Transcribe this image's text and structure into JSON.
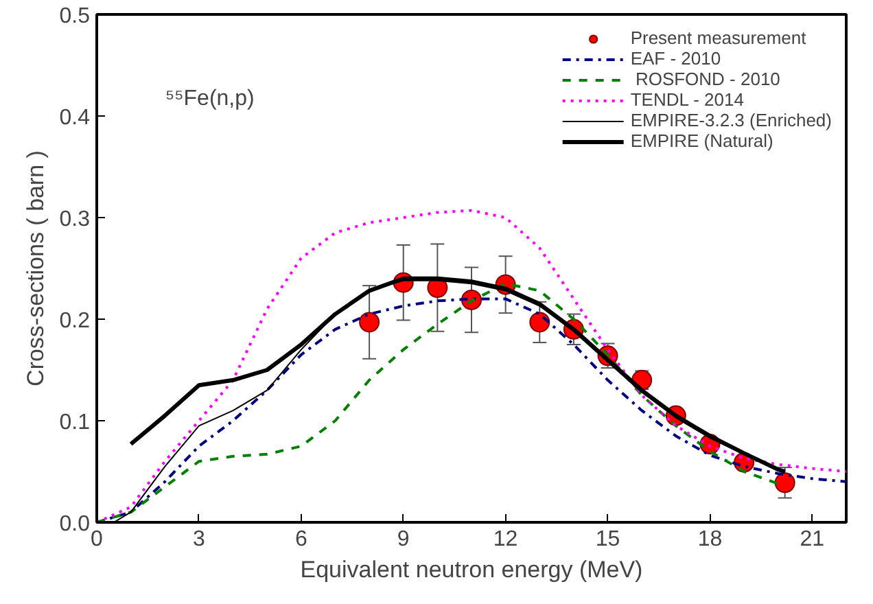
{
  "chart_data": {
    "type": "line",
    "xlabel": "Equivalent neutron energy (MeV)",
    "ylabel": "Cross-sections ( barn )",
    "xlim": [
      0,
      22
    ],
    "ylim": [
      0,
      0.5
    ],
    "xticks": [
      0,
      3,
      6,
      9,
      12,
      15,
      18,
      21
    ],
    "yticks": [
      {
        "value": 0,
        "label": "0.0"
      },
      0.1,
      0.2,
      0.3,
      0.4,
      0.5
    ],
    "grid": false,
    "legend": "top right",
    "annotations": [
      "⁵⁵Fe(n,p)"
    ],
    "series": [
      {
        "name": "Present measurement",
        "type": "scatter",
        "marker": "circle",
        "color": "#ff0000",
        "x": [
          8,
          9,
          10,
          11,
          12,
          13,
          14,
          15,
          16,
          17,
          18,
          19,
          20.2
        ],
        "values": [
          0.197,
          0.236,
          0.231,
          0.219,
          0.234,
          0.197,
          0.19,
          0.164,
          0.14,
          0.105,
          0.077,
          0.059,
          0.039
        ],
        "errors": [
          0.036,
          0.037,
          0.043,
          0.032,
          0.028,
          0.02,
          0.015,
          0.012,
          0.009,
          0.007,
          0.005,
          0.004,
          0.015
        ]
      },
      {
        "name": "EAF - 2010",
        "line_style": "dashdot",
        "color": "#000080",
        "x": [
          0,
          1,
          2,
          3,
          4,
          5,
          6,
          7,
          8,
          9,
          10,
          11,
          12,
          13,
          14,
          15,
          16,
          17,
          18,
          19,
          20,
          21,
          22
        ],
        "values": [
          0,
          0.01,
          0.04,
          0.075,
          0.1,
          0.13,
          0.165,
          0.19,
          0.205,
          0.213,
          0.218,
          0.22,
          0.22,
          0.205,
          0.175,
          0.14,
          0.11,
          0.085,
          0.066,
          0.055,
          0.048,
          0.043,
          0.04
        ]
      },
      {
        "name": " ROSFOND - 2010",
        "line_style": "dashed",
        "color": "#008000",
        "x": [
          0,
          1,
          2,
          3,
          4,
          5,
          6,
          7,
          8,
          9,
          10,
          11,
          12,
          13,
          14,
          15,
          16,
          17,
          18,
          19,
          20,
          20.2
        ],
        "values": [
          0,
          0.01,
          0.035,
          0.06,
          0.065,
          0.067,
          0.075,
          0.1,
          0.14,
          0.17,
          0.195,
          0.218,
          0.235,
          0.228,
          0.2,
          0.165,
          0.125,
          0.095,
          0.07,
          0.05,
          0.038,
          0.036
        ]
      },
      {
        "name": "TENDL - 2014",
        "line_style": "dotted",
        "color": "#ff00ff",
        "x": [
          0,
          1,
          2,
          3,
          4,
          5,
          6,
          7,
          8,
          9,
          10,
          11,
          12,
          13,
          14,
          15,
          16,
          17,
          18,
          19,
          20,
          21,
          22
        ],
        "values": [
          0,
          0.015,
          0.06,
          0.1,
          0.14,
          0.21,
          0.26,
          0.285,
          0.295,
          0.3,
          0.305,
          0.307,
          0.3,
          0.27,
          0.22,
          0.17,
          0.125,
          0.095,
          0.075,
          0.063,
          0.057,
          0.053,
          0.05
        ]
      },
      {
        "name": "EMPIRE-3.2.3 (Enriched)",
        "line_style": "solid",
        "color": "#000000",
        "x": [
          0,
          0.5,
          1,
          2,
          3,
          4,
          5,
          6,
          7,
          8,
          9,
          10,
          11,
          12,
          13,
          14,
          15,
          16,
          17,
          18,
          19,
          20,
          20.2
        ],
        "values": [
          0,
          0,
          0.01,
          0.055,
          0.095,
          0.11,
          0.13,
          0.17,
          0.205,
          0.228,
          0.238,
          0.238,
          0.235,
          0.228,
          0.213,
          0.188,
          0.158,
          0.128,
          0.103,
          0.083,
          0.067,
          0.052,
          0.05
        ]
      },
      {
        "name": "EMPIRE (Natural)",
        "line_style": "solid",
        "color": "#000000",
        "x": [
          1,
          2,
          3,
          4,
          5,
          6,
          7,
          8,
          9,
          10,
          11,
          12,
          13,
          14,
          15,
          16,
          17,
          18,
          19,
          20,
          20.2
        ],
        "values": [
          0.077,
          0.105,
          0.135,
          0.14,
          0.15,
          0.175,
          0.205,
          0.228,
          0.24,
          0.24,
          0.237,
          0.23,
          0.215,
          0.19,
          0.16,
          0.13,
          0.105,
          0.085,
          0.068,
          0.052,
          0.05
        ]
      }
    ]
  }
}
